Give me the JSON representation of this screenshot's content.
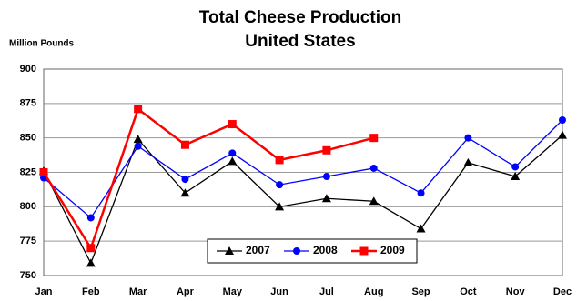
{
  "chart_data": {
    "type": "line",
    "title": "Total Cheese Production",
    "subtitle": "United States",
    "y_label": "Million Pounds",
    "categories": [
      "Jan",
      "Feb",
      "Mar",
      "Apr",
      "May",
      "Jun",
      "Jul",
      "Aug",
      "Sep",
      "Oct",
      "Nov",
      "Dec"
    ],
    "series": [
      {
        "name": "2007",
        "color": "#000000",
        "marker": "triangle",
        "values": [
          826,
          759,
          849,
          810,
          833,
          800,
          806,
          804,
          784,
          832,
          822,
          852
        ]
      },
      {
        "name": "2008",
        "color": "#0000ff",
        "marker": "circle",
        "values": [
          821,
          792,
          844,
          820,
          839,
          816,
          822,
          828,
          810,
          850,
          829,
          863
        ]
      },
      {
        "name": "2009",
        "color": "#ff0000",
        "marker": "square",
        "values": [
          825,
          770,
          871,
          845,
          860,
          834,
          841,
          850,
          null,
          null,
          null,
          null
        ]
      }
    ],
    "ylim": [
      750,
      900
    ],
    "yticks": [
      750,
      775,
      800,
      825,
      850,
      875,
      900
    ],
    "grid": true,
    "legend": "lower center"
  }
}
